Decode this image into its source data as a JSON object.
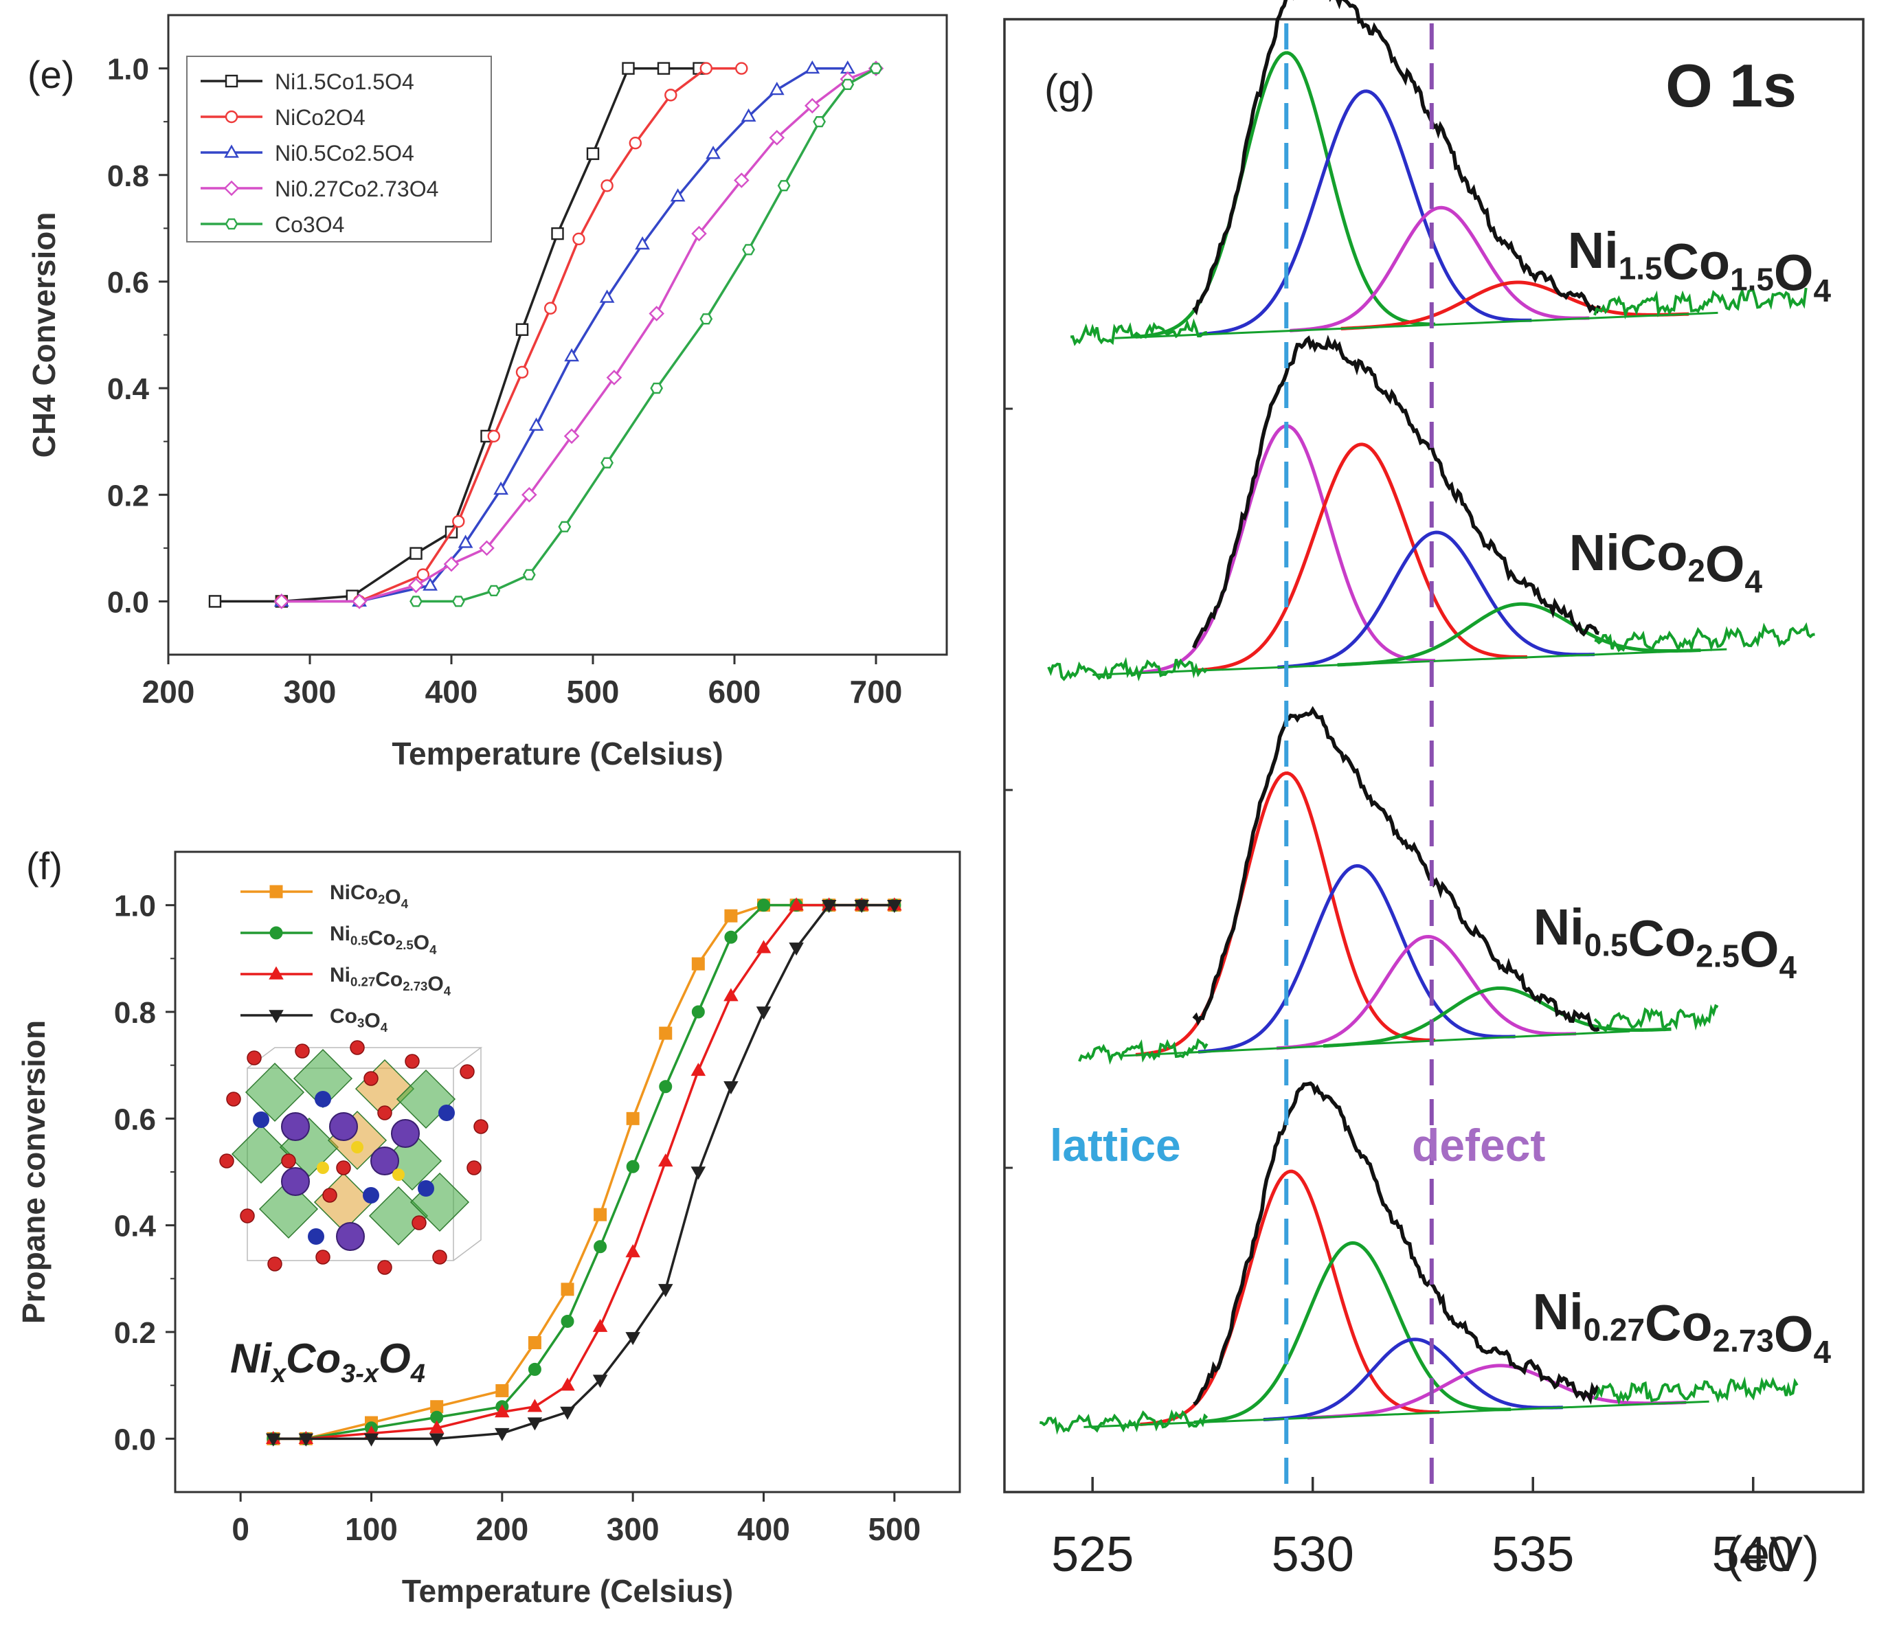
{
  "figure": {
    "panels": [
      "e",
      "f",
      "g"
    ]
  },
  "colors": {
    "black": "#222222",
    "red": "#ee3b3b",
    "blue": "#3446c8",
    "magenta": "#d64fc8",
    "green": "#2ea84a",
    "orange": "#f0961e",
    "green_dark": "#239a32",
    "red_f": "#e81c1c",
    "lattice_line": "#3aa0dc",
    "defect_line": "#8a4fb0",
    "lattice_text": "#37a6de",
    "defect_text": "#a56cc4",
    "xps_red": "#ee1c1c",
    "xps_green": "#14a02c",
    "xps_blue": "#2a2ec8",
    "xps_magenta": "#c83cc8"
  },
  "chart_data": [
    {
      "id": "e",
      "type": "line",
      "panel_label": "(e)",
      "xlabel": "Temperature (Celsius)",
      "ylabel": "CH4 Conversion",
      "xlim": [
        200,
        750
      ],
      "ylim": [
        -0.1,
        1.1
      ],
      "xticks": [
        200,
        300,
        400,
        500,
        600,
        700
      ],
      "yticks": [
        0.0,
        0.2,
        0.4,
        0.6,
        0.8,
        1.0
      ],
      "ytick_labels": [
        "0.0",
        "0.2",
        "0.4",
        "0.6",
        "0.8",
        "1.0"
      ],
      "legend": "top-left",
      "marker": "open",
      "series": [
        {
          "name": "Ni1.5Co1.5O4",
          "color_key": "black",
          "marker": "square",
          "x": [
            233,
            280,
            330,
            375,
            400,
            425,
            450,
            475,
            500,
            525,
            550,
            575
          ],
          "y": [
            0.0,
            0.0,
            0.01,
            0.09,
            0.13,
            0.31,
            0.51,
            0.69,
            0.84,
            1.0,
            1.0,
            1.0
          ]
        },
        {
          "name": "NiCo2O4",
          "color_key": "red",
          "marker": "circle",
          "x": [
            280,
            335,
            380,
            405,
            430,
            450,
            470,
            490,
            510,
            530,
            555,
            580,
            605
          ],
          "y": [
            0.0,
            0.0,
            0.05,
            0.15,
            0.31,
            0.43,
            0.55,
            0.68,
            0.78,
            0.86,
            0.95,
            1.0,
            1.0
          ]
        },
        {
          "name": "Ni0.5Co2.5O4",
          "color_key": "blue",
          "marker": "triangle",
          "x": [
            280,
            335,
            385,
            410,
            435,
            460,
            485,
            510,
            535,
            560,
            585,
            610,
            630,
            655,
            680
          ],
          "y": [
            0.0,
            0.0,
            0.03,
            0.11,
            0.21,
            0.33,
            0.46,
            0.57,
            0.67,
            0.76,
            0.84,
            0.91,
            0.96,
            1.0,
            1.0
          ]
        },
        {
          "name": "Ni0.27Co2.73O4",
          "color_key": "magenta",
          "marker": "diamond",
          "x": [
            280,
            335,
            375,
            400,
            425,
            455,
            485,
            515,
            545,
            575,
            605,
            630,
            655,
            680,
            700
          ],
          "y": [
            0.0,
            0.0,
            0.03,
            0.07,
            0.1,
            0.2,
            0.31,
            0.42,
            0.54,
            0.69,
            0.79,
            0.87,
            0.93,
            0.98,
            1.0
          ]
        },
        {
          "name": "Co3O4",
          "color_key": "green",
          "marker": "hexagon",
          "x": [
            375,
            405,
            430,
            455,
            480,
            510,
            545,
            580,
            610,
            635,
            660,
            680,
            700
          ],
          "y": [
            0.0,
            0.0,
            0.02,
            0.05,
            0.14,
            0.26,
            0.4,
            0.53,
            0.66,
            0.78,
            0.9,
            0.97,
            1.0
          ]
        }
      ]
    },
    {
      "id": "f",
      "type": "line",
      "panel_label": "(f)",
      "xlabel": "Temperature (Celsius)",
      "ylabel": "Propane conversion",
      "xlim": [
        -50,
        550
      ],
      "ylim": [
        -0.1,
        1.1
      ],
      "xticks": [
        0,
        100,
        200,
        300,
        400,
        500
      ],
      "yticks": [
        0.0,
        0.2,
        0.4,
        0.6,
        0.8,
        1.0
      ],
      "ytick_labels": [
        "0.0",
        "0.2",
        "0.4",
        "0.6",
        "0.8",
        "1.0"
      ],
      "legend": "top-left",
      "marker": "filled",
      "inset_label": {
        "prefix": "Ni",
        "x_sub": "x",
        "mid": "Co",
        "sub": "3-x",
        "suffix": "O",
        "suffix_sub": "4"
      },
      "series": [
        {
          "name": "NiCo2O4",
          "color_key": "orange",
          "marker": "square",
          "x": [
            25,
            50,
            100,
            150,
            200,
            225,
            250,
            275,
            300,
            325,
            350,
            375,
            400,
            425,
            450,
            475,
            500
          ],
          "y": [
            0.0,
            0.0,
            0.03,
            0.06,
            0.09,
            0.18,
            0.28,
            0.42,
            0.6,
            0.76,
            0.89,
            0.98,
            1.0,
            1.0,
            1.0,
            1.0,
            1.0
          ]
        },
        {
          "name": "Ni0.5Co2.5O4",
          "color_key": "green_dark",
          "marker": "circle",
          "x": [
            25,
            50,
            100,
            150,
            200,
            225,
            250,
            275,
            300,
            325,
            350,
            375,
            400,
            425,
            450,
            475,
            500
          ],
          "y": [
            0.0,
            0.0,
            0.02,
            0.04,
            0.06,
            0.13,
            0.22,
            0.36,
            0.51,
            0.66,
            0.8,
            0.94,
            1.0,
            1.0,
            1.0,
            1.0,
            1.0
          ]
        },
        {
          "name": "Ni0.27Co2.73O4",
          "color_key": "red_f",
          "marker": "triangle",
          "x": [
            25,
            50,
            100,
            150,
            200,
            225,
            250,
            275,
            300,
            325,
            350,
            375,
            400,
            425,
            450,
            475,
            500
          ],
          "y": [
            0.0,
            0.0,
            0.01,
            0.02,
            0.05,
            0.06,
            0.1,
            0.21,
            0.35,
            0.52,
            0.69,
            0.83,
            0.92,
            1.0,
            1.0,
            1.0,
            1.0
          ]
        },
        {
          "name": "Co3O4",
          "color_key": "black",
          "marker": "triangle-down",
          "x": [
            25,
            50,
            100,
            150,
            200,
            225,
            250,
            275,
            300,
            325,
            350,
            375,
            400,
            425,
            450,
            475,
            500
          ],
          "y": [
            0.0,
            0.0,
            0.0,
            0.0,
            0.01,
            0.03,
            0.05,
            0.11,
            0.19,
            0.28,
            0.5,
            0.66,
            0.8,
            0.92,
            1.0,
            1.0,
            1.0
          ]
        }
      ],
      "legend_labels": [
        {
          "base": "NiCo",
          "parts": [
            [
              "NiCo",
              ""
            ],
            [
              "2",
              "sub"
            ],
            [
              "O",
              ""
            ],
            [
              "4",
              "sub"
            ]
          ]
        },
        {
          "base": "Ni0.5",
          "parts": [
            [
              "Ni",
              ""
            ],
            [
              "0.5",
              "sub"
            ],
            [
              "Co",
              ""
            ],
            [
              "2.5",
              "sub"
            ],
            [
              "O",
              ""
            ],
            [
              "4",
              "sub"
            ]
          ]
        },
        {
          "base": "Ni0.27",
          "parts": [
            [
              "Ni",
              ""
            ],
            [
              "0.27",
              "sub"
            ],
            [
              "Co",
              ""
            ],
            [
              "2.73",
              "sub"
            ],
            [
              "O",
              ""
            ],
            [
              "4",
              "sub"
            ]
          ]
        },
        {
          "base": "Co3",
          "parts": [
            [
              "Co",
              ""
            ],
            [
              "3",
              "sub"
            ],
            [
              "O",
              ""
            ],
            [
              "4",
              "sub"
            ]
          ]
        }
      ]
    },
    {
      "id": "g",
      "type": "line",
      "panel_label": "(g)",
      "title": "O 1s",
      "xlabel": "(eV)",
      "xlim": [
        523,
        542.5
      ],
      "xticks": [
        525,
        530,
        535,
        540
      ],
      "reference_lines": [
        {
          "label": "lattice",
          "x": 529.4,
          "color_key": "lattice_line"
        },
        {
          "label": "defect",
          "x": 532.7,
          "color_key": "defect_line"
        }
      ],
      "spectra": [
        {
          "label_parts": [
            [
              "Ni",
              ""
            ],
            [
              "1.5",
              "sub"
            ],
            [
              "Co",
              ""
            ],
            [
              "1.5",
              "sub"
            ],
            [
              "O",
              ""
            ],
            [
              "4",
              "sub"
            ]
          ],
          "range": [
            524.5,
            541.2
          ],
          "components": [
            {
              "center": 529.4,
              "amp": 1.0,
              "sigma": 0.95,
              "color_key": "xps_green"
            },
            {
              "center": 531.2,
              "amp": 0.85,
              "sigma": 1.05,
              "color_key": "xps_blue"
            },
            {
              "center": 532.9,
              "amp": 0.42,
              "sigma": 0.95,
              "color_key": "xps_magenta"
            },
            {
              "center": 534.6,
              "amp": 0.14,
              "sigma": 1.1,
              "color_key": "xps_red"
            }
          ]
        },
        {
          "label_parts": [
            [
              "NiCo",
              ""
            ],
            [
              "2",
              "sub"
            ],
            [
              "O",
              ""
            ],
            [
              "4",
              "sub"
            ]
          ],
          "range": [
            524.0,
            541.4
          ],
          "components": [
            {
              "center": 529.4,
              "amp": 0.9,
              "sigma": 0.95,
              "color_key": "xps_magenta"
            },
            {
              "center": 531.1,
              "amp": 0.82,
              "sigma": 1.05,
              "color_key": "xps_red"
            },
            {
              "center": 532.8,
              "amp": 0.48,
              "sigma": 1.0,
              "color_key": "xps_blue"
            },
            {
              "center": 534.7,
              "amp": 0.2,
              "sigma": 1.15,
              "color_key": "xps_green"
            }
          ]
        },
        {
          "label_parts": [
            [
              "Ni",
              ""
            ],
            [
              "0.5",
              "sub"
            ],
            [
              "Co",
              ""
            ],
            [
              "2.5",
              "sub"
            ],
            [
              "O",
              ""
            ],
            [
              "4",
              "sub"
            ]
          ],
          "range": [
            524.7,
            539.2
          ],
          "components": [
            {
              "center": 529.4,
              "amp": 1.0,
              "sigma": 0.95,
              "color_key": "xps_red"
            },
            {
              "center": 531.0,
              "amp": 0.65,
              "sigma": 1.0,
              "color_key": "xps_blue"
            },
            {
              "center": 532.6,
              "amp": 0.38,
              "sigma": 0.95,
              "color_key": "xps_magenta"
            },
            {
              "center": 534.2,
              "amp": 0.18,
              "sigma": 1.1,
              "color_key": "xps_green"
            }
          ]
        },
        {
          "label_parts": [
            [
              "Ni",
              ""
            ],
            [
              "0.27",
              "sub"
            ],
            [
              "Co",
              ""
            ],
            [
              "2.73",
              "sub"
            ],
            [
              "O",
              ""
            ],
            [
              "4",
              "sub"
            ]
          ],
          "range": [
            523.8,
            541.0
          ],
          "components": [
            {
              "center": 529.5,
              "amp": 1.0,
              "sigma": 0.95,
              "color_key": "xps_red"
            },
            {
              "center": 530.9,
              "amp": 0.7,
              "sigma": 1.0,
              "color_key": "xps_green"
            },
            {
              "center": 532.3,
              "amp": 0.3,
              "sigma": 0.95,
              "color_key": "xps_blue"
            },
            {
              "center": 534.2,
              "amp": 0.18,
              "sigma": 1.2,
              "color_key": "xps_magenta"
            }
          ]
        }
      ]
    }
  ]
}
